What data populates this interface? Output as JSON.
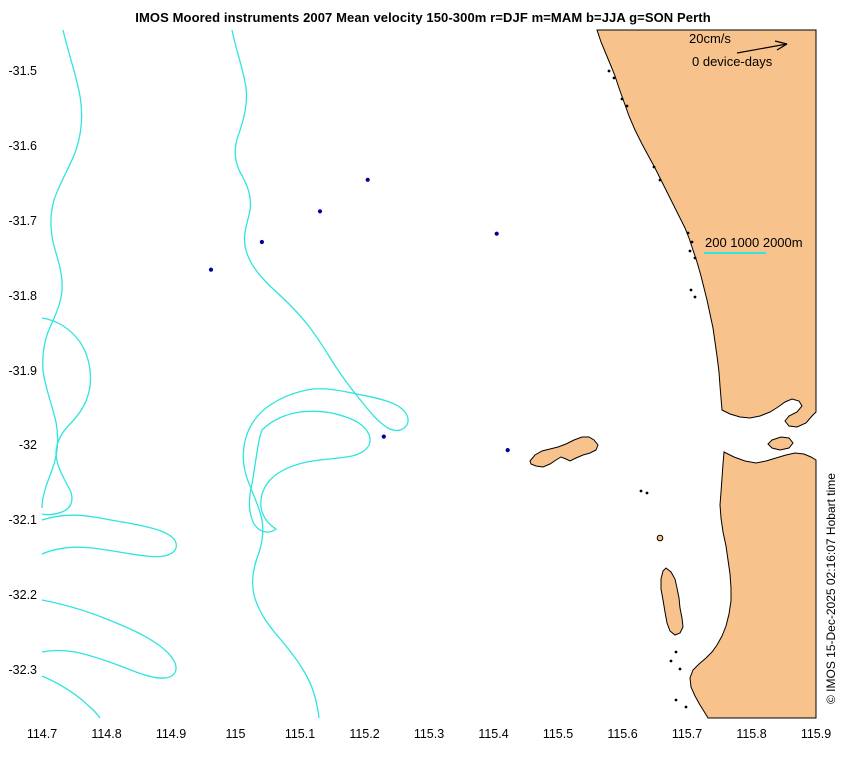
{
  "map": {
    "title": "IMOS Moored instruments 2007 Mean velocity 150-300m r=DJF m=MAM b=JJA g=SON Perth",
    "legend": {
      "scale_label": "20cm/s",
      "device_days_label": "0 device-days"
    },
    "depth_contours_label": "200 1000 2000m",
    "copyright": "© IMOS 15-Dec-2025 02:16:07 Hobart time",
    "x_axis": {
      "ticks": [
        "114.7",
        "114.8",
        "114.9",
        "115",
        "115.1",
        "115.2",
        "115.3",
        "115.4",
        "115.5",
        "115.6",
        "115.7",
        "115.8",
        "115.9"
      ],
      "range": [
        114.7,
        115.9
      ]
    },
    "y_axis": {
      "ticks": [
        "-31.5",
        "-31.6",
        "-31.7",
        "-31.8",
        "-31.9",
        "-32",
        "-32.1",
        "-32.2",
        "-32.3"
      ],
      "range": [
        -31.5,
        -32.3
      ]
    },
    "markers": [
      {
        "lon": 115.205,
        "lat": -31.644
      },
      {
        "lon": 115.131,
        "lat": -31.686
      },
      {
        "lon": 115.041,
        "lat": -31.727
      },
      {
        "lon": 114.962,
        "lat": -31.764
      },
      {
        "lon": 115.405,
        "lat": -31.716
      },
      {
        "lon": 115.23,
        "lat": -31.987
      },
      {
        "lon": 115.422,
        "lat": -32.005
      }
    ],
    "colors": {
      "land": "#F7C28B",
      "contour": "#2FE5DD",
      "marker": "#0000A0",
      "coastline": "#000000"
    }
  }
}
